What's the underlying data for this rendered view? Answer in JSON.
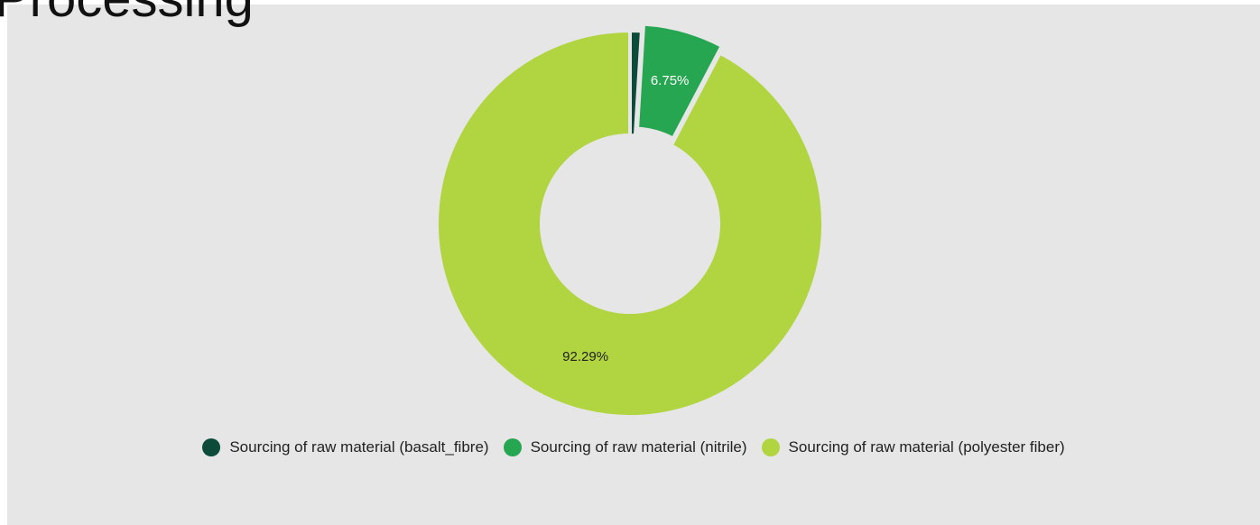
{
  "page": {
    "title": "Processing"
  },
  "chart_data": {
    "type": "pie",
    "title": "",
    "legend_position": "bottom",
    "donut": true,
    "categories": [
      "Sourcing of raw material (basalt_fibre)",
      "Sourcing of raw material (nitrile)",
      "Sourcing of raw material (polyester fiber)"
    ],
    "values": [
      0.96,
      6.75,
      92.29
    ],
    "data_labels": [
      "",
      "6.75%",
      "92.29%"
    ],
    "colors": [
      "#0c4a3a",
      "#26a650",
      "#b1d541"
    ],
    "label_colors": [
      "#ffffff",
      "#ffffff",
      "#222222"
    ]
  }
}
